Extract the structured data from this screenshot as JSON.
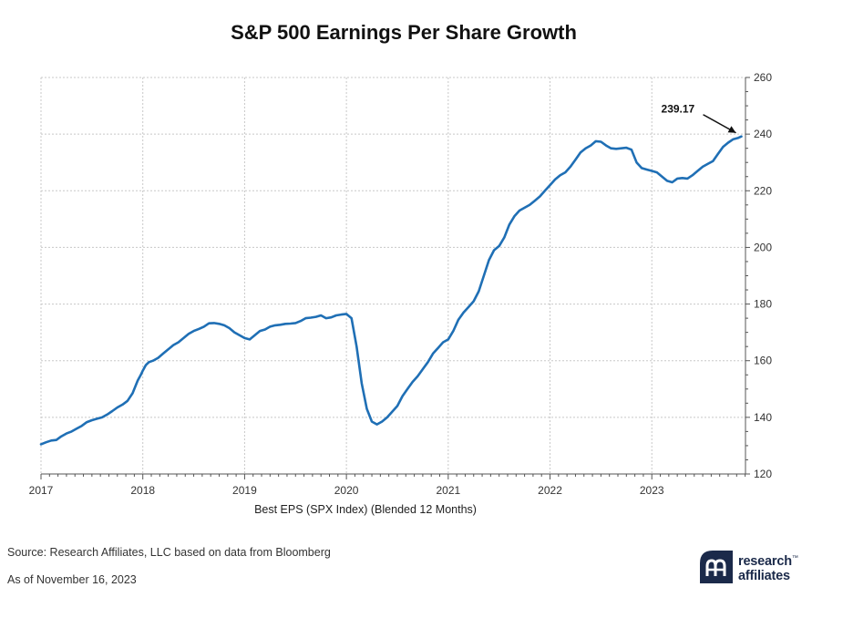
{
  "chart_data": {
    "type": "line",
    "title": "S&P 500 Earnings Per Share Growth",
    "xlabel": "Best EPS (SPX Index) (Blended 12 Months)",
    "ylabel": "",
    "x_ticks": [
      "2017",
      "2018",
      "2019",
      "2020",
      "2021",
      "2022",
      "2023"
    ],
    "y_ticks": [
      120,
      140,
      160,
      180,
      200,
      220,
      240,
      260
    ],
    "ylim": [
      120,
      260
    ],
    "xlim": [
      2017.0,
      2023.92
    ],
    "y_axis_side": "right",
    "grid": "horizontal dashed",
    "legend": "none",
    "series": [
      {
        "color": "#1f6fb5",
        "x": [
          2017.0,
          2017.05,
          2017.1,
          2017.15,
          2017.2,
          2017.25,
          2017.3,
          2017.35,
          2017.4,
          2017.45,
          2017.5,
          2017.55,
          2017.6,
          2017.65,
          2017.7,
          2017.75,
          2017.8,
          2017.85,
          2017.9,
          2017.95,
          2017.98,
          2018.0,
          2018.03,
          2018.06,
          2018.1,
          2018.15,
          2018.2,
          2018.25,
          2018.3,
          2018.35,
          2018.4,
          2018.45,
          2018.5,
          2018.55,
          2018.6,
          2018.65,
          2018.7,
          2018.75,
          2018.8,
          2018.85,
          2018.9,
          2018.95,
          2019.0,
          2019.05,
          2019.1,
          2019.15,
          2019.2,
          2019.25,
          2019.3,
          2019.35,
          2019.4,
          2019.45,
          2019.5,
          2019.55,
          2019.6,
          2019.65,
          2019.7,
          2019.75,
          2019.8,
          2019.85,
          2019.9,
          2019.95,
          2020.0,
          2020.05,
          2020.1,
          2020.15,
          2020.2,
          2020.25,
          2020.3,
          2020.35,
          2020.4,
          2020.45,
          2020.5,
          2020.55,
          2020.6,
          2020.65,
          2020.7,
          2020.75,
          2020.8,
          2020.85,
          2020.9,
          2020.95,
          2021.0,
          2021.05,
          2021.1,
          2021.15,
          2021.2,
          2021.25,
          2021.3,
          2021.35,
          2021.4,
          2021.45,
          2021.5,
          2021.55,
          2021.6,
          2021.65,
          2021.7,
          2021.75,
          2021.8,
          2021.85,
          2021.9,
          2021.95,
          2022.0,
          2022.05,
          2022.1,
          2022.15,
          2022.2,
          2022.25,
          2022.3,
          2022.35,
          2022.4,
          2022.45,
          2022.5,
          2022.55,
          2022.6,
          2022.65,
          2022.7,
          2022.75,
          2022.8,
          2022.85,
          2022.9,
          2022.95,
          2023.0,
          2023.05,
          2023.1,
          2023.15,
          2023.2,
          2023.25,
          2023.3,
          2023.35,
          2023.4,
          2023.45,
          2023.5,
          2023.55,
          2023.6,
          2023.65,
          2023.7,
          2023.75,
          2023.8,
          2023.85,
          2023.88
        ],
        "y": [
          130.5,
          131.2,
          131.8,
          132.0,
          133.3,
          134.3,
          135.0,
          136.0,
          137.0,
          138.3,
          139.0,
          139.5,
          140.0,
          141.0,
          142.2,
          143.5,
          144.5,
          145.8,
          148.5,
          153.0,
          155.0,
          156.5,
          158.5,
          159.5,
          160.0,
          161.0,
          162.5,
          164.0,
          165.5,
          166.5,
          168.0,
          169.5,
          170.5,
          171.2,
          172.0,
          173.2,
          173.3,
          173.0,
          172.5,
          171.5,
          170.0,
          169.0,
          168.0,
          167.5,
          169.0,
          170.5,
          171.0,
          172.0,
          172.5,
          172.7,
          173.0,
          173.1,
          173.3,
          174.0,
          175.0,
          175.2,
          175.5,
          176.0,
          175.0,
          175.3,
          176.0,
          176.3,
          176.5,
          175.0,
          165.0,
          152.0,
          143.0,
          138.5,
          137.5,
          138.5,
          140.0,
          142.0,
          144.0,
          147.5,
          150.0,
          152.5,
          154.5,
          157.0,
          159.5,
          162.5,
          164.5,
          166.5,
          167.5,
          170.5,
          174.5,
          177.0,
          179.0,
          181.0,
          184.5,
          190.0,
          195.5,
          199.0,
          200.5,
          203.5,
          208.0,
          211.0,
          213.0,
          214.0,
          215.0,
          216.5,
          218.0,
          220.0,
          222.0,
          224.0,
          225.5,
          226.5,
          228.5,
          231.0,
          233.5,
          235.0,
          236.0,
          237.5,
          237.3,
          236.0,
          235.0,
          234.8,
          235.0,
          235.2,
          234.5,
          230.0,
          228.0,
          227.5,
          227.0,
          226.5,
          225.0,
          223.5,
          223.0,
          224.3,
          224.5,
          224.3,
          225.5,
          227.0,
          228.5,
          229.5,
          230.5,
          233.0,
          235.5,
          237.0,
          238.2,
          238.7,
          239.17
        ]
      }
    ],
    "annotations": [
      {
        "text": "239.17",
        "x": 2023.88,
        "y": 239.17
      }
    ]
  },
  "footer": {
    "source": "Source: Research Affiliates, LLC based on data from Bloomberg",
    "as_of": "As of November 16, 2023"
  },
  "logo": {
    "line1": "research",
    "line2": "affiliates",
    "trademark": "™",
    "icon": "research-affiliates-logo-mark",
    "color": "#1b2a4a"
  },
  "colors": {
    "line": "#1f6fb5",
    "grid": "#c8c8c8",
    "axis": "#555555"
  }
}
